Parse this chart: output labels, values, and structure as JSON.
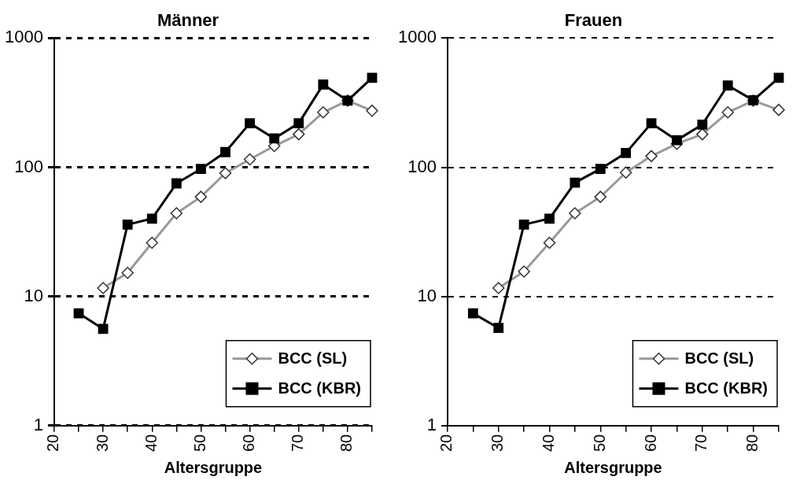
{
  "chart_data": [
    {
      "type": "line",
      "title": "Männer",
      "xlabel": "Altersgruppe",
      "x": [
        25,
        30,
        35,
        40,
        45,
        50,
        55,
        60,
        65,
        70,
        75,
        80,
        85
      ],
      "series": [
        {
          "name": "BCC (SL)",
          "color": "#999999",
          "marker": "diamond",
          "values": [
            null,
            11.6,
            15.2,
            26,
            44,
            59,
            90,
            115,
            146,
            180,
            266,
            328,
            274
          ]
        },
        {
          "name": "BCC (KBR)",
          "color": "#000000",
          "marker": "square",
          "values": [
            7.4,
            5.6,
            36,
            40,
            75,
            97,
            131,
            219,
            167,
            219,
            437,
            328,
            493
          ]
        }
      ],
      "log": "y",
      "xlim": [
        20,
        85
      ],
      "ylim": [
        1,
        1000
      ],
      "xticks": [
        20,
        {
          "value": 25,
          "label": null
        },
        30,
        {
          "value": 35,
          "label": null
        },
        40,
        {
          "value": 45,
          "label": null
        },
        50,
        {
          "value": 55,
          "label": null
        },
        60,
        {
          "value": 65,
          "label": null
        },
        70,
        {
          "value": 75,
          "label": null
        },
        80,
        {
          "value": 85,
          "label": null
        }
      ],
      "yticks": [
        1,
        10,
        100,
        1000
      ],
      "grid": "y",
      "legend": "bottom right"
    },
    {
      "type": "line",
      "title": "Frauen",
      "xlabel": "Altersgruppe",
      "x": [
        25,
        30,
        35,
        40,
        45,
        50,
        55,
        60,
        65,
        70,
        75,
        80,
        85
      ],
      "series": [
        {
          "name": "BCC (SL)",
          "color": "#999999",
          "marker": "diamond",
          "values": [
            null,
            11.6,
            15.6,
            26,
            44,
            59,
            91,
            122,
            152,
            180,
            266,
            328,
            278
          ]
        },
        {
          "name": "BCC (KBR)",
          "color": "#000000",
          "marker": "square",
          "values": [
            7.4,
            5.7,
            36,
            40,
            76,
            97,
            129,
            219,
            162,
            214,
            430,
            330,
            493
          ]
        }
      ],
      "log": "y",
      "xlim": [
        20,
        85
      ],
      "ylim": [
        1,
        1000
      ],
      "xticks": [
        20,
        {
          "value": 25,
          "label": null
        },
        30,
        {
          "value": 35,
          "label": null
        },
        40,
        {
          "value": 45,
          "label": null
        },
        50,
        {
          "value": 55,
          "label": null
        },
        60,
        {
          "value": 65,
          "label": null
        },
        70,
        {
          "value": 75,
          "label": null
        },
        80,
        {
          "value": 85,
          "label": null
        }
      ],
      "yticks": [
        1,
        10,
        100,
        1000
      ],
      "grid": "y",
      "legend": "bottom right"
    }
  ]
}
